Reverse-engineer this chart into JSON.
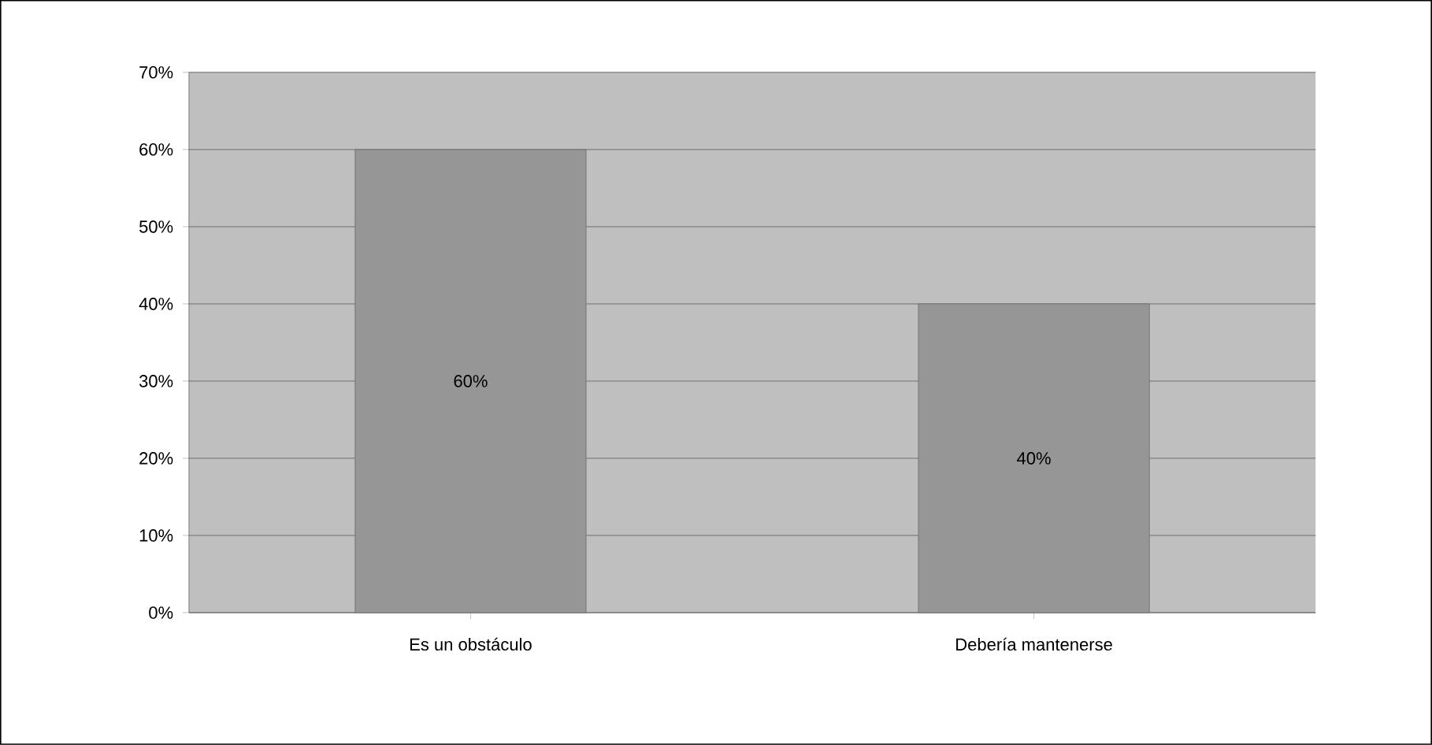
{
  "chart_data": {
    "type": "bar",
    "categories": [
      "Es un obstáculo",
      "Debería mantenerse"
    ],
    "values": [
      60,
      40
    ],
    "value_labels": [
      "60%",
      "40%"
    ],
    "color": "#969696",
    "ylim": [
      0,
      70
    ],
    "yticks": [
      {
        "value": 0,
        "label": "0%"
      },
      {
        "value": 10,
        "label": "10%"
      },
      {
        "value": 20,
        "label": "20%"
      },
      {
        "value": 30,
        "label": "30%"
      },
      {
        "value": 40,
        "label": "40%"
      },
      {
        "value": 50,
        "label": "50%"
      },
      {
        "value": 60,
        "label": "60%"
      },
      {
        "value": 70,
        "label": "70%"
      }
    ],
    "grid": "y"
  }
}
